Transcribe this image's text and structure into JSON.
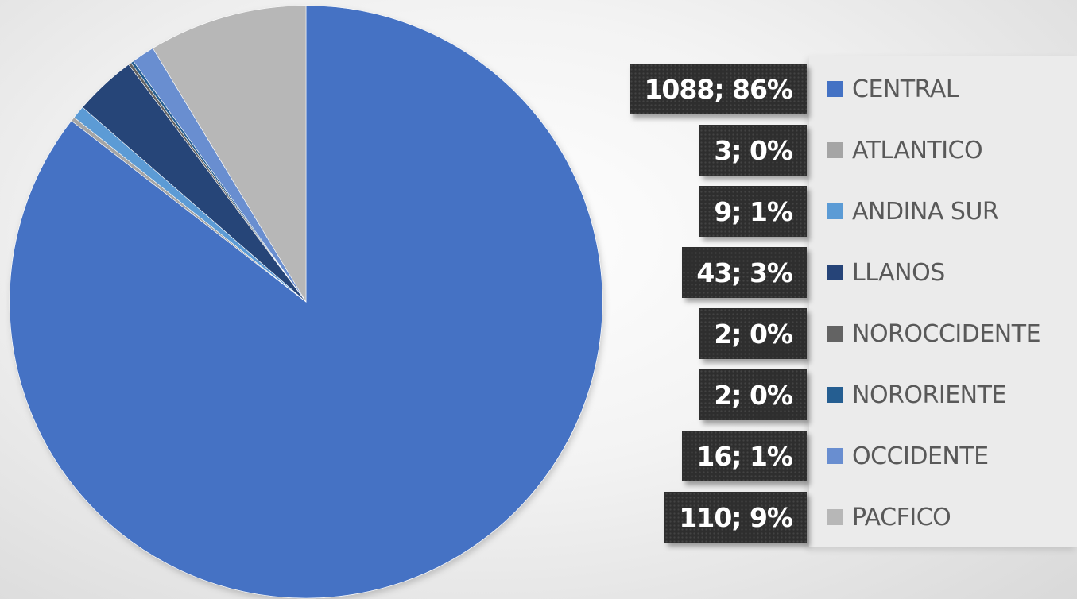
{
  "chart_data": {
    "type": "pie",
    "title": "",
    "start_angle_deg": 0,
    "direction": "clockwise",
    "legend_position": "right",
    "label_format": "value; percent",
    "categories": [
      "CENTRAL",
      "ATLANTICO",
      "ANDINA SUR",
      "LLANOS",
      "NOROCCIDENTE",
      "NORORIENTE",
      "OCCIDENTE",
      "PACFICO"
    ],
    "values": [
      1088,
      3,
      9,
      43,
      2,
      2,
      16,
      110
    ],
    "percents": [
      86,
      0,
      1,
      3,
      0,
      0,
      1,
      9
    ],
    "data_labels": [
      "1088; 86%",
      "3; 0%",
      "9; 1%",
      "43; 3%",
      "2; 0%",
      "2; 0%",
      "16; 1%",
      "110; 9%"
    ],
    "colors": [
      "#4472c4",
      "#a5a5a5",
      "#5b9bd5",
      "#264478",
      "#636363",
      "#255e91",
      "#698ed0",
      "#b7b7b7"
    ]
  }
}
